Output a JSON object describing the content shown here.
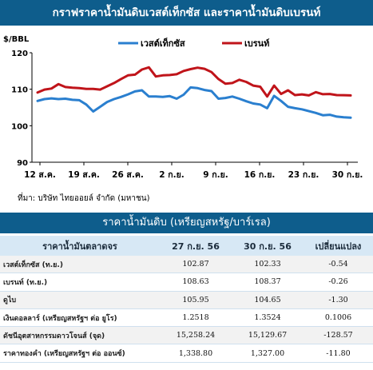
{
  "header": {
    "title": "กราฟราคาน้ำมันดิบเวสต์เท็กซัส และราคาน้ำมันดิบเบรนท์"
  },
  "chart_data": {
    "type": "line",
    "ylabel": "$/BBL",
    "ylim": [
      90,
      120
    ],
    "yticks": [
      90,
      100,
      110,
      120
    ],
    "legend": {
      "placement": "top",
      "items": [
        "เวสต์เท็กซัส",
        "เบรนท์"
      ]
    },
    "x_ticks": [
      "12 ส.ค.",
      "19 ส.ค.",
      "26 ส.ค.",
      "2 ก.ย.",
      "9 ก.ย.",
      "16 ก.ย.",
      "23 ก.ย.",
      "30 ก.ย."
    ],
    "series": [
      {
        "name": "เวสต์เท็กซัส",
        "color": "#2a7fcf",
        "values": [
          106.8,
          107.3,
          107.5,
          107.3,
          107.4,
          107.1,
          107.0,
          105.8,
          103.9,
          105.2,
          106.5,
          107.3,
          107.9,
          108.6,
          109.4,
          109.7,
          108.0,
          108.0,
          107.9,
          108.1,
          107.4,
          108.5,
          110.5,
          110.3,
          109.8,
          109.5,
          107.4,
          107.6,
          108.0,
          107.4,
          106.7,
          106.1,
          105.8,
          104.8,
          108.2,
          106.8,
          105.2,
          104.8,
          104.5,
          104.0,
          103.5,
          102.87,
          103.0,
          102.5,
          102.33,
          102.2
        ]
      },
      {
        "name": "เบรนท์",
        "color": "#c0141a",
        "values": [
          109.1,
          109.9,
          110.2,
          111.4,
          110.6,
          110.4,
          110.3,
          110.1,
          110.1,
          109.9,
          110.8,
          111.7,
          112.8,
          113.8,
          114.0,
          115.4,
          116.0,
          113.5,
          113.8,
          113.9,
          114.1,
          115.0,
          115.5,
          115.9,
          115.6,
          114.7,
          112.8,
          111.5,
          111.7,
          112.6,
          112.0,
          111.0,
          110.7,
          108.0,
          111.0,
          108.7,
          109.7,
          108.4,
          108.6,
          108.3,
          109.2,
          108.63,
          108.7,
          108.4,
          108.37,
          108.3
        ]
      }
    ],
    "grid": false
  },
  "source": "ที่มา: บริษัท ไทยออยล์ จำกัด (มหาชน)",
  "table": {
    "title": "ราคาน้ำมันดิบ (เหรียญสหรัฐ/บาร์เรล)",
    "headers": [
      "ราคาน้ำมันตลาดจร",
      "27 ก.ย. 56",
      "30 ก.ย. 56",
      "เปลี่ยนแปลง"
    ],
    "rows": [
      [
        "เวสต์เท็กซัส (ท.ย.)",
        "102.87",
        "102.33",
        "-0.54"
      ],
      [
        "เบรนท์ (ท.ย.)",
        "108.63",
        "108.37",
        "-0.26"
      ],
      [
        "ดูไบ",
        "105.95",
        "104.65",
        "-1.30"
      ],
      [
        "เงินดอลลาร์ (เหรียญสหรัฐฯ ต่อ ยูโร)",
        "1.2518",
        "1.3524",
        "0.1006"
      ],
      [
        "ดัชนีอุตสาหกรรมดาวโจนส์ (จุด)",
        "15,258.24",
        "15,129.67",
        "-128.57"
      ],
      [
        "ราคาทองคำ (เหรียญสหรัฐฯ ต่อ ออนซ์)",
        "1,338.80",
        "1,327.00",
        "-11.80"
      ]
    ]
  },
  "colors": {
    "header_bg": "#0e5d8c",
    "table_header_bg": "#d7e8f5"
  }
}
